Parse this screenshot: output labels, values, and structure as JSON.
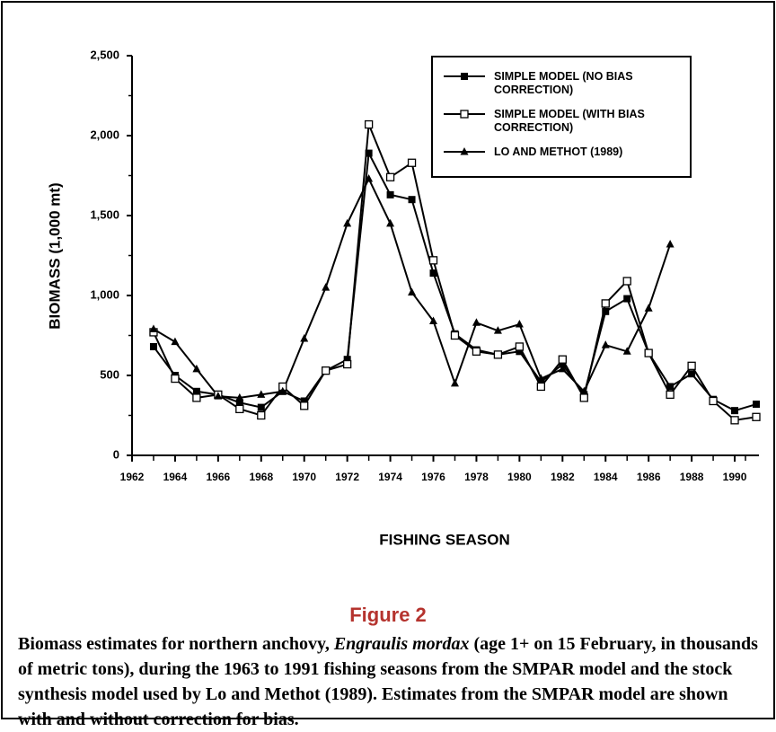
{
  "chart_data": {
    "type": "line",
    "xlabel": "FISHING SEASON",
    "ylabel": "BIOMASS (1,000 mt)",
    "x": [
      1963,
      1964,
      1965,
      1966,
      1967,
      1968,
      1969,
      1970,
      1971,
      1972,
      1973,
      1974,
      1975,
      1976,
      1977,
      1978,
      1979,
      1980,
      1981,
      1982,
      1983,
      1984,
      1985,
      1986,
      1987,
      1988,
      1989,
      1990,
      1991
    ],
    "series": [
      {
        "name": "SIMPLE MODEL (NO BIAS CORRECTION)",
        "color": "#000000",
        "marker": "filled-square",
        "values": [
          680,
          500,
          400,
          380,
          330,
          300,
          400,
          340,
          530,
          600,
          1890,
          1630,
          1600,
          1140,
          760,
          660,
          630,
          650,
          460,
          570,
          380,
          900,
          980,
          640,
          430,
          510,
          350,
          280,
          320
        ]
      },
      {
        "name": "SIMPLE MODEL (WITH BIAS CORRECTION)",
        "color": "#000000",
        "marker": "open-square",
        "values": [
          770,
          480,
          360,
          380,
          290,
          250,
          430,
          310,
          530,
          570,
          2070,
          1740,
          1830,
          1220,
          750,
          650,
          630,
          680,
          430,
          600,
          360,
          950,
          1090,
          640,
          380,
          560,
          340,
          220,
          240
        ]
      },
      {
        "name": "LO AND METHOT (1989)",
        "color": "#000000",
        "marker": "filled-triangle",
        "values": [
          790,
          710,
          540,
          370,
          360,
          380,
          400,
          730,
          1050,
          1450,
          1730,
          1450,
          1020,
          840,
          450,
          830,
          780,
          820,
          480,
          540,
          400,
          690,
          650,
          920,
          1320,
          null,
          null,
          null,
          null
        ]
      }
    ],
    "xlim": [
      1962,
      1991
    ],
    "xticks": [
      1962,
      1964,
      1966,
      1968,
      1970,
      1972,
      1974,
      1976,
      1978,
      1980,
      1982,
      1984,
      1986,
      1988,
      1990
    ],
    "ylim": [
      0,
      2500
    ],
    "yticks": [
      0,
      500,
      {
        "value": 1000,
        "label": "1,000"
      },
      {
        "value": 1500,
        "label": "1,500"
      },
      {
        "value": 2000,
        "label": "2,000"
      },
      {
        "value": 2500,
        "label": "2,500"
      }
    ],
    "grid": false
  },
  "figure": {
    "label": "Figure 2",
    "caption": [
      "Biomass estimates for northern anchovy, ",
      "Engraulis mordax",
      " (age 1+ on 15 February, in thousands of metric tons), during the 1963 to 1991 fishing seasons from the SMPAR model and the stock synthesis model used by Lo and Methot (1989). Estimates from the SMPAR model are shown with and without correction for bias."
    ]
  }
}
